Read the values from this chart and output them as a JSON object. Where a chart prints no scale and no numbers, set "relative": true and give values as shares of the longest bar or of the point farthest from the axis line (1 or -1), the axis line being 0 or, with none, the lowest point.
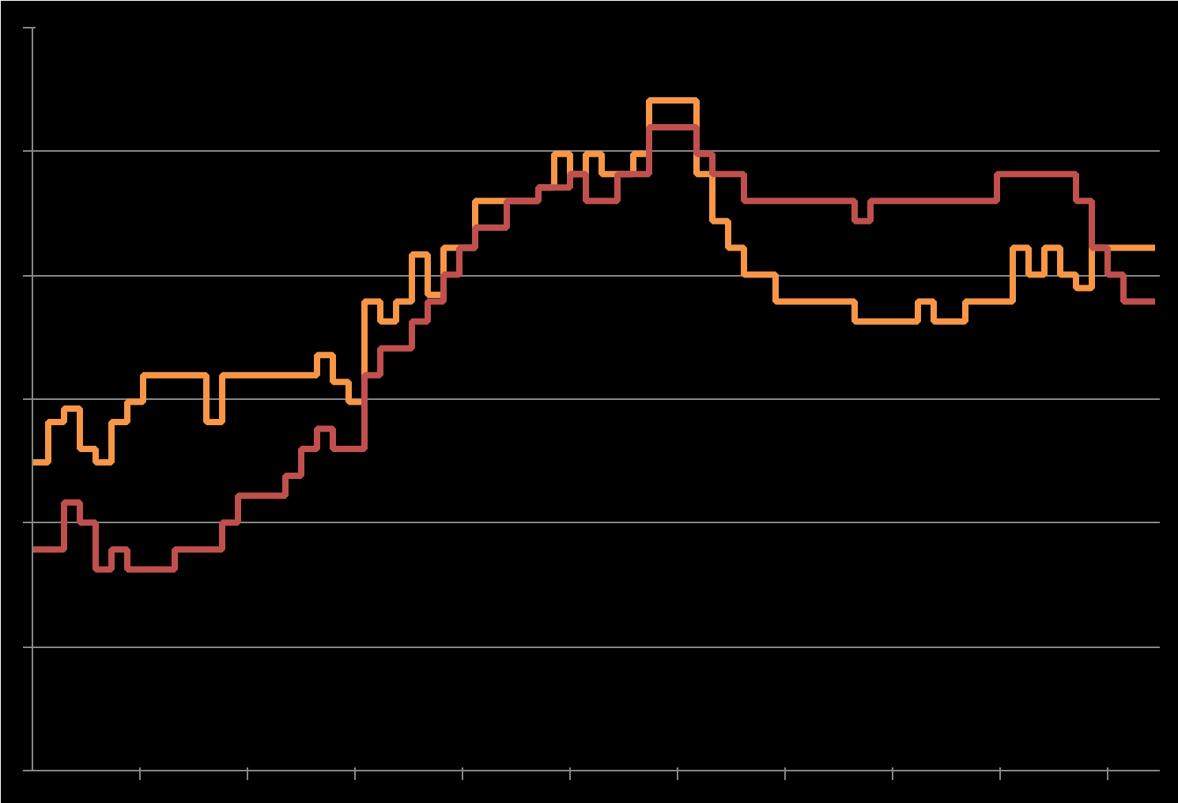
{
  "chart_data": {
    "type": "step",
    "relative": true,
    "grid": "y",
    "categories": [
      null,
      null,
      null,
      null,
      null,
      null,
      null,
      null,
      null,
      null,
      null,
      null,
      null,
      null,
      null,
      null,
      null,
      null,
      null,
      null,
      null,
      null,
      null,
      null,
      null,
      null,
      null,
      null,
      null,
      null,
      null,
      null,
      null,
      null,
      null,
      null,
      null,
      null,
      null,
      null,
      null,
      null,
      null,
      null,
      null,
      null,
      null,
      null,
      null,
      null,
      null,
      null,
      null,
      null,
      null,
      null,
      null,
      null,
      null,
      null,
      null,
      null,
      null,
      null,
      null,
      null,
      null,
      null,
      null,
      null,
      null,
      null
    ],
    "series": [
      {
        "color": "#f79646",
        "values": [
          0.46,
          0.52,
          0.54,
          0.48,
          0.46,
          0.52,
          0.55,
          0.59,
          0.59,
          0.59,
          0.59,
          0.52,
          0.59,
          0.59,
          0.59,
          0.59,
          0.59,
          0.59,
          0.62,
          0.58,
          0.55,
          0.7,
          0.67,
          0.7,
          0.77,
          0.71,
          0.78,
          0.78,
          0.85,
          0.85,
          0.85,
          0.85,
          0.87,
          0.92,
          0.89,
          0.92,
          0.89,
          0.89,
          0.92,
          1.0,
          1.0,
          1.0,
          0.89,
          0.82,
          0.78,
          0.74,
          0.74,
          0.7,
          0.7,
          0.7,
          0.7,
          0.7,
          0.67,
          0.67,
          0.67,
          0.67,
          0.7,
          0.67,
          0.67,
          0.7,
          0.7,
          0.7,
          0.78,
          0.74,
          0.78,
          0.74,
          0.72,
          0.78,
          0.78,
          0.78,
          0.78,
          0.78
        ]
      },
      {
        "color": "#c0504d",
        "values": [
          0.33,
          0.33,
          0.4,
          0.37,
          0.3,
          0.33,
          0.3,
          0.3,
          0.3,
          0.33,
          0.33,
          0.33,
          0.37,
          0.41,
          0.41,
          0.41,
          0.44,
          0.48,
          0.51,
          0.48,
          0.48,
          0.59,
          0.63,
          0.63,
          0.67,
          0.7,
          0.74,
          0.78,
          0.81,
          0.81,
          0.85,
          0.85,
          0.87,
          0.87,
          0.89,
          0.85,
          0.85,
          0.89,
          0.89,
          0.96,
          0.96,
          0.96,
          0.92,
          0.89,
          0.89,
          0.85,
          0.85,
          0.85,
          0.85,
          0.85,
          0.85,
          0.85,
          0.82,
          0.85,
          0.85,
          0.85,
          0.85,
          0.85,
          0.85,
          0.85,
          0.85,
          0.89,
          0.89,
          0.89,
          0.89,
          0.89,
          0.85,
          0.78,
          0.74,
          0.7,
          0.7,
          0.7
        ]
      }
    ]
  }
}
